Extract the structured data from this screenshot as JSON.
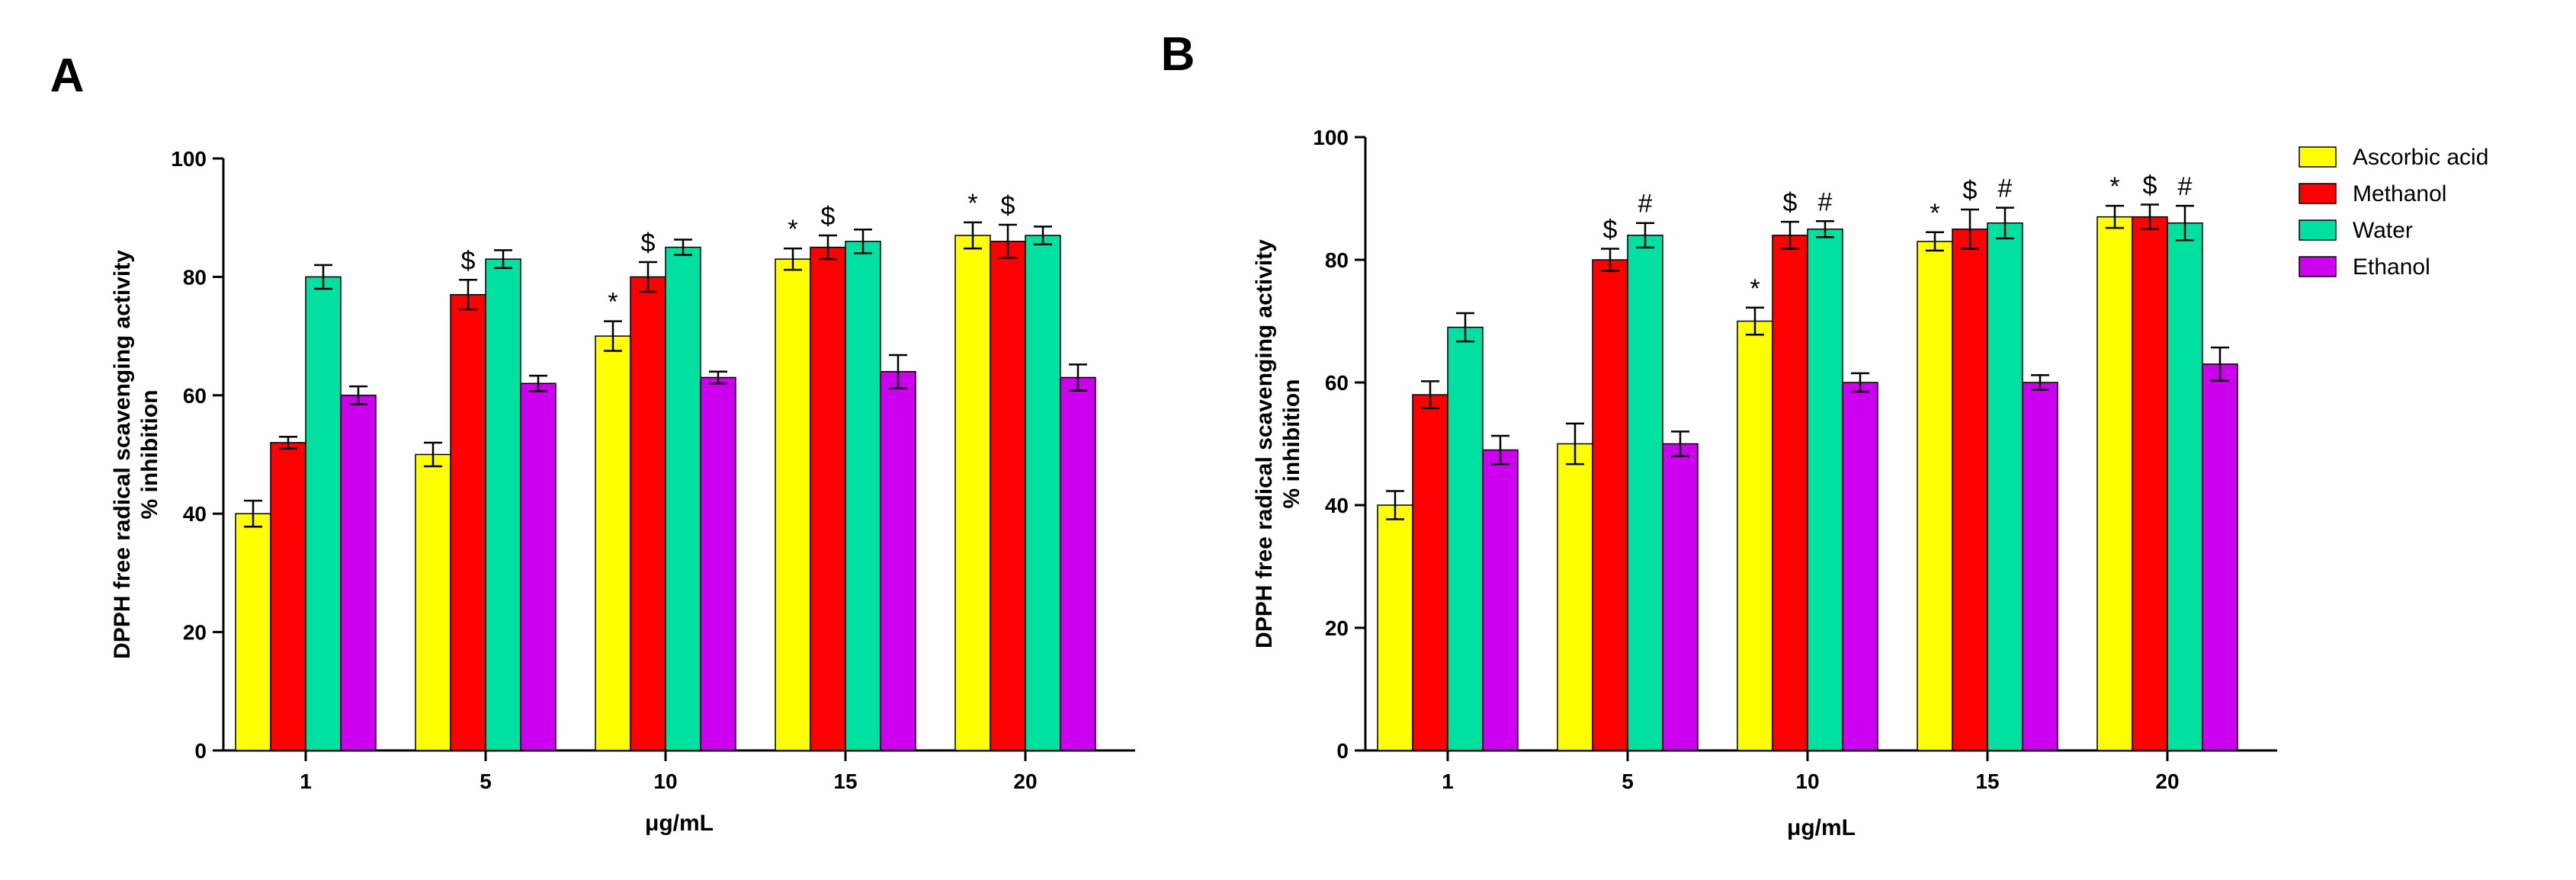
{
  "panels": [
    {
      "label": "A"
    },
    {
      "label": "B"
    }
  ],
  "chart_data": [
    {
      "type": "bar",
      "panel": "A",
      "ylabel_line1": "DPPH free radical scavenging activity",
      "ylabel_line2": "% inhibition",
      "xlabel": "μg/mL",
      "ylim": [
        0,
        100
      ],
      "yticks": [
        0,
        20,
        40,
        60,
        80,
        100
      ],
      "categories": [
        "1",
        "5",
        "10",
        "15",
        "20"
      ],
      "legend": false,
      "series": [
        {
          "name": "Ascorbic acid",
          "color": "#ffff00",
          "values": [
            40,
            50,
            70,
            83,
            87
          ],
          "errors": [
            2.2,
            2.0,
            2.5,
            1.8,
            2.2
          ],
          "marks": [
            "",
            "",
            "*",
            "*",
            "*"
          ]
        },
        {
          "name": "Methanol",
          "color": "#ff0000",
          "values": [
            52,
            77,
            80,
            85,
            86
          ],
          "errors": [
            1.0,
            2.5,
            2.5,
            2.0,
            2.8
          ],
          "marks": [
            "",
            "$",
            "$",
            "$",
            "$"
          ]
        },
        {
          "name": "Water",
          "color": "#00e0a0",
          "values": [
            80,
            83,
            85,
            86,
            87
          ],
          "errors": [
            2.0,
            1.5,
            1.3,
            2.0,
            1.5
          ],
          "marks": [
            "",
            "",
            "",
            "",
            ""
          ]
        },
        {
          "name": "Ethanol",
          "color": "#cc00ee",
          "values": [
            60,
            62,
            63,
            64,
            63
          ],
          "errors": [
            1.5,
            1.3,
            1.0,
            2.8,
            2.2
          ],
          "marks": [
            "",
            "",
            "",
            "",
            ""
          ]
        }
      ]
    },
    {
      "type": "bar",
      "panel": "B",
      "ylabel_line1": "DPPH free radical scavenging activity",
      "ylabel_line2": "% inhibition",
      "xlabel": "μg/mL",
      "ylim": [
        0,
        100
      ],
      "yticks": [
        0,
        20,
        40,
        60,
        80,
        100
      ],
      "categories": [
        "1",
        "5",
        "10",
        "15",
        "20"
      ],
      "legend": "top-right",
      "series": [
        {
          "name": "Ascorbic acid",
          "color": "#ffff00",
          "values": [
            40,
            50,
            70,
            83,
            87
          ],
          "errors": [
            2.3,
            3.3,
            2.2,
            1.5,
            1.8
          ],
          "marks": [
            "",
            "",
            "*",
            "*",
            "*"
          ]
        },
        {
          "name": "Methanol",
          "color": "#ff0000",
          "values": [
            58,
            80,
            84,
            85,
            87
          ],
          "errors": [
            2.2,
            1.8,
            2.2,
            3.2,
            2.0
          ],
          "marks": [
            "",
            "$",
            "$",
            "$",
            "$"
          ]
        },
        {
          "name": "Water",
          "color": "#00e0a0",
          "values": [
            69,
            84,
            85,
            86,
            86
          ],
          "errors": [
            2.3,
            2.0,
            1.3,
            2.5,
            2.8
          ],
          "marks": [
            "",
            "#",
            "#",
            "#",
            "#"
          ]
        },
        {
          "name": "Ethanol",
          "color": "#cc00ee",
          "values": [
            49,
            50,
            60,
            60,
            63
          ],
          "errors": [
            2.3,
            2.0,
            1.5,
            1.2,
            2.7
          ],
          "marks": [
            "",
            "",
            "",
            "",
            ""
          ]
        }
      ]
    }
  ]
}
